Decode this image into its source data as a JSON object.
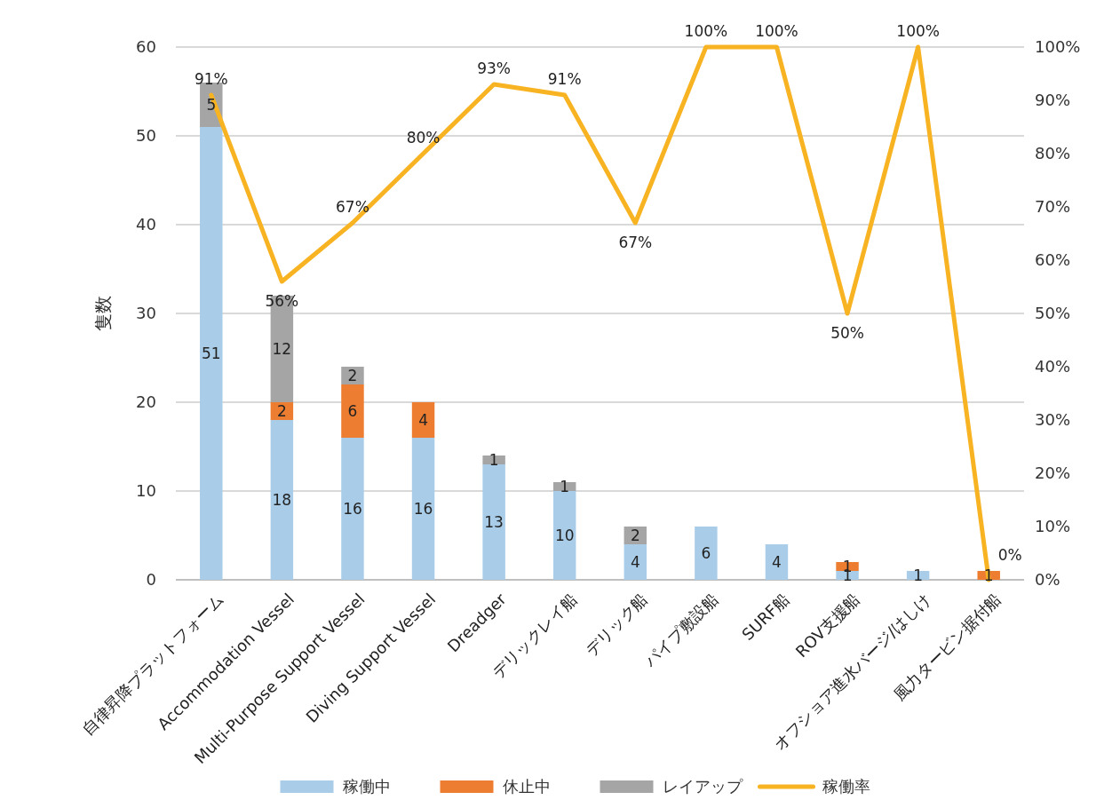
{
  "chart_data": {
    "type": "bar",
    "stacked": true,
    "ylabel": "隻数",
    "categories": [
      "自律昇降プラットフォーム",
      "Accommodation Vessel",
      "Multi-Purpose Support Vessel",
      "Diving Support Vessel",
      "Dreadger",
      "デリックレイ船",
      "デリック船",
      "パイプ敷設船",
      "SURF船",
      "ROV支援船",
      "オフショア進水バージ/はしけ",
      "風力タービン据付船"
    ],
    "series": [
      {
        "name": "稼働中",
        "color": "#a9cde8",
        "values": [
          51,
          18,
          16,
          16,
          13,
          10,
          4,
          6,
          4,
          1,
          1,
          0
        ],
        "value_labels": [
          "51",
          "18",
          "16",
          "16",
          "13",
          "10",
          "4",
          "6",
          "4",
          "1",
          "1",
          null
        ]
      },
      {
        "name": "休止中",
        "color": "#ed7d31",
        "values": [
          0,
          2,
          6,
          4,
          0,
          0,
          0,
          0,
          0,
          1,
          0,
          1
        ],
        "value_labels": [
          null,
          "2",
          "6",
          "4",
          null,
          null,
          null,
          null,
          null,
          "1",
          null,
          "1"
        ]
      },
      {
        "name": "レイアップ",
        "color": "#a5a5a5",
        "values": [
          5,
          12,
          2,
          0,
          1,
          1,
          2,
          0,
          0,
          0,
          0,
          0
        ],
        "value_labels": [
          "5",
          "12",
          "2",
          null,
          "1",
          "1",
          "2",
          null,
          null,
          null,
          null,
          null
        ]
      },
      {
        "name": "稼働率",
        "type": "line",
        "axis": "y2",
        "color": "#f8b323",
        "values": [
          91,
          56,
          67,
          80,
          93,
          91,
          67,
          100,
          100,
          50,
          100,
          0
        ],
        "value_labels": [
          "91%",
          "56%",
          "67%",
          "80%",
          "93%",
          "91%",
          "67%",
          "100%",
          "100%",
          "50%",
          "100%",
          "0%"
        ]
      }
    ],
    "ylim": [
      0,
      60
    ],
    "yticks": [
      0,
      10,
      20,
      30,
      40,
      50,
      60
    ],
    "y2lim": [
      0,
      100
    ],
    "y2ticks": [
      {
        "value": 0,
        "label": "0%"
      },
      {
        "value": 10,
        "label": "10%"
      },
      {
        "value": 20,
        "label": "20%"
      },
      {
        "value": 30,
        "label": "30%"
      },
      {
        "value": 40,
        "label": "40%"
      },
      {
        "value": 50,
        "label": "50%"
      },
      {
        "value": 60,
        "label": "60%"
      },
      {
        "value": 70,
        "label": "70%"
      },
      {
        "value": 80,
        "label": "80%"
      },
      {
        "value": 90,
        "label": "90%"
      },
      {
        "value": 100,
        "label": "100%"
      }
    ],
    "grid": "y",
    "legend": "bottom"
  }
}
